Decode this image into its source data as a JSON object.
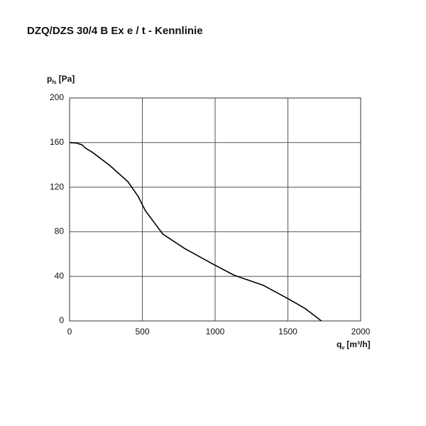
{
  "chart_data": {
    "type": "line",
    "title": "DZQ/DZS 30/4 B Ex e / t - Kennlinie",
    "y_label": {
      "symbol": "p",
      "subscript": "fs",
      "unit": "[Pa]"
    },
    "x_label": {
      "symbol": "q",
      "subscript": "v",
      "unit": "[m³/h]"
    },
    "x": [
      0,
      50,
      85,
      110,
      160,
      280,
      400,
      470,
      520,
      640,
      790,
      985,
      1130,
      1330,
      1500,
      1620,
      1690,
      1730
    ],
    "series": [
      {
        "name": "Kennlinie",
        "color": "#000000",
        "values": [
          160,
          159.5,
          158,
          155,
          151,
          139,
          125,
          112,
          99,
          78,
          65,
          51,
          41,
          32,
          20,
          11,
          4,
          0
        ]
      }
    ],
    "xlim": [
      0,
      2000
    ],
    "xticks": [
      0,
      500,
      1000,
      1500,
      2000
    ],
    "ylim": [
      0,
      200
    ],
    "yticks": [
      0,
      40,
      80,
      120,
      160,
      200
    ],
    "grid": true
  }
}
